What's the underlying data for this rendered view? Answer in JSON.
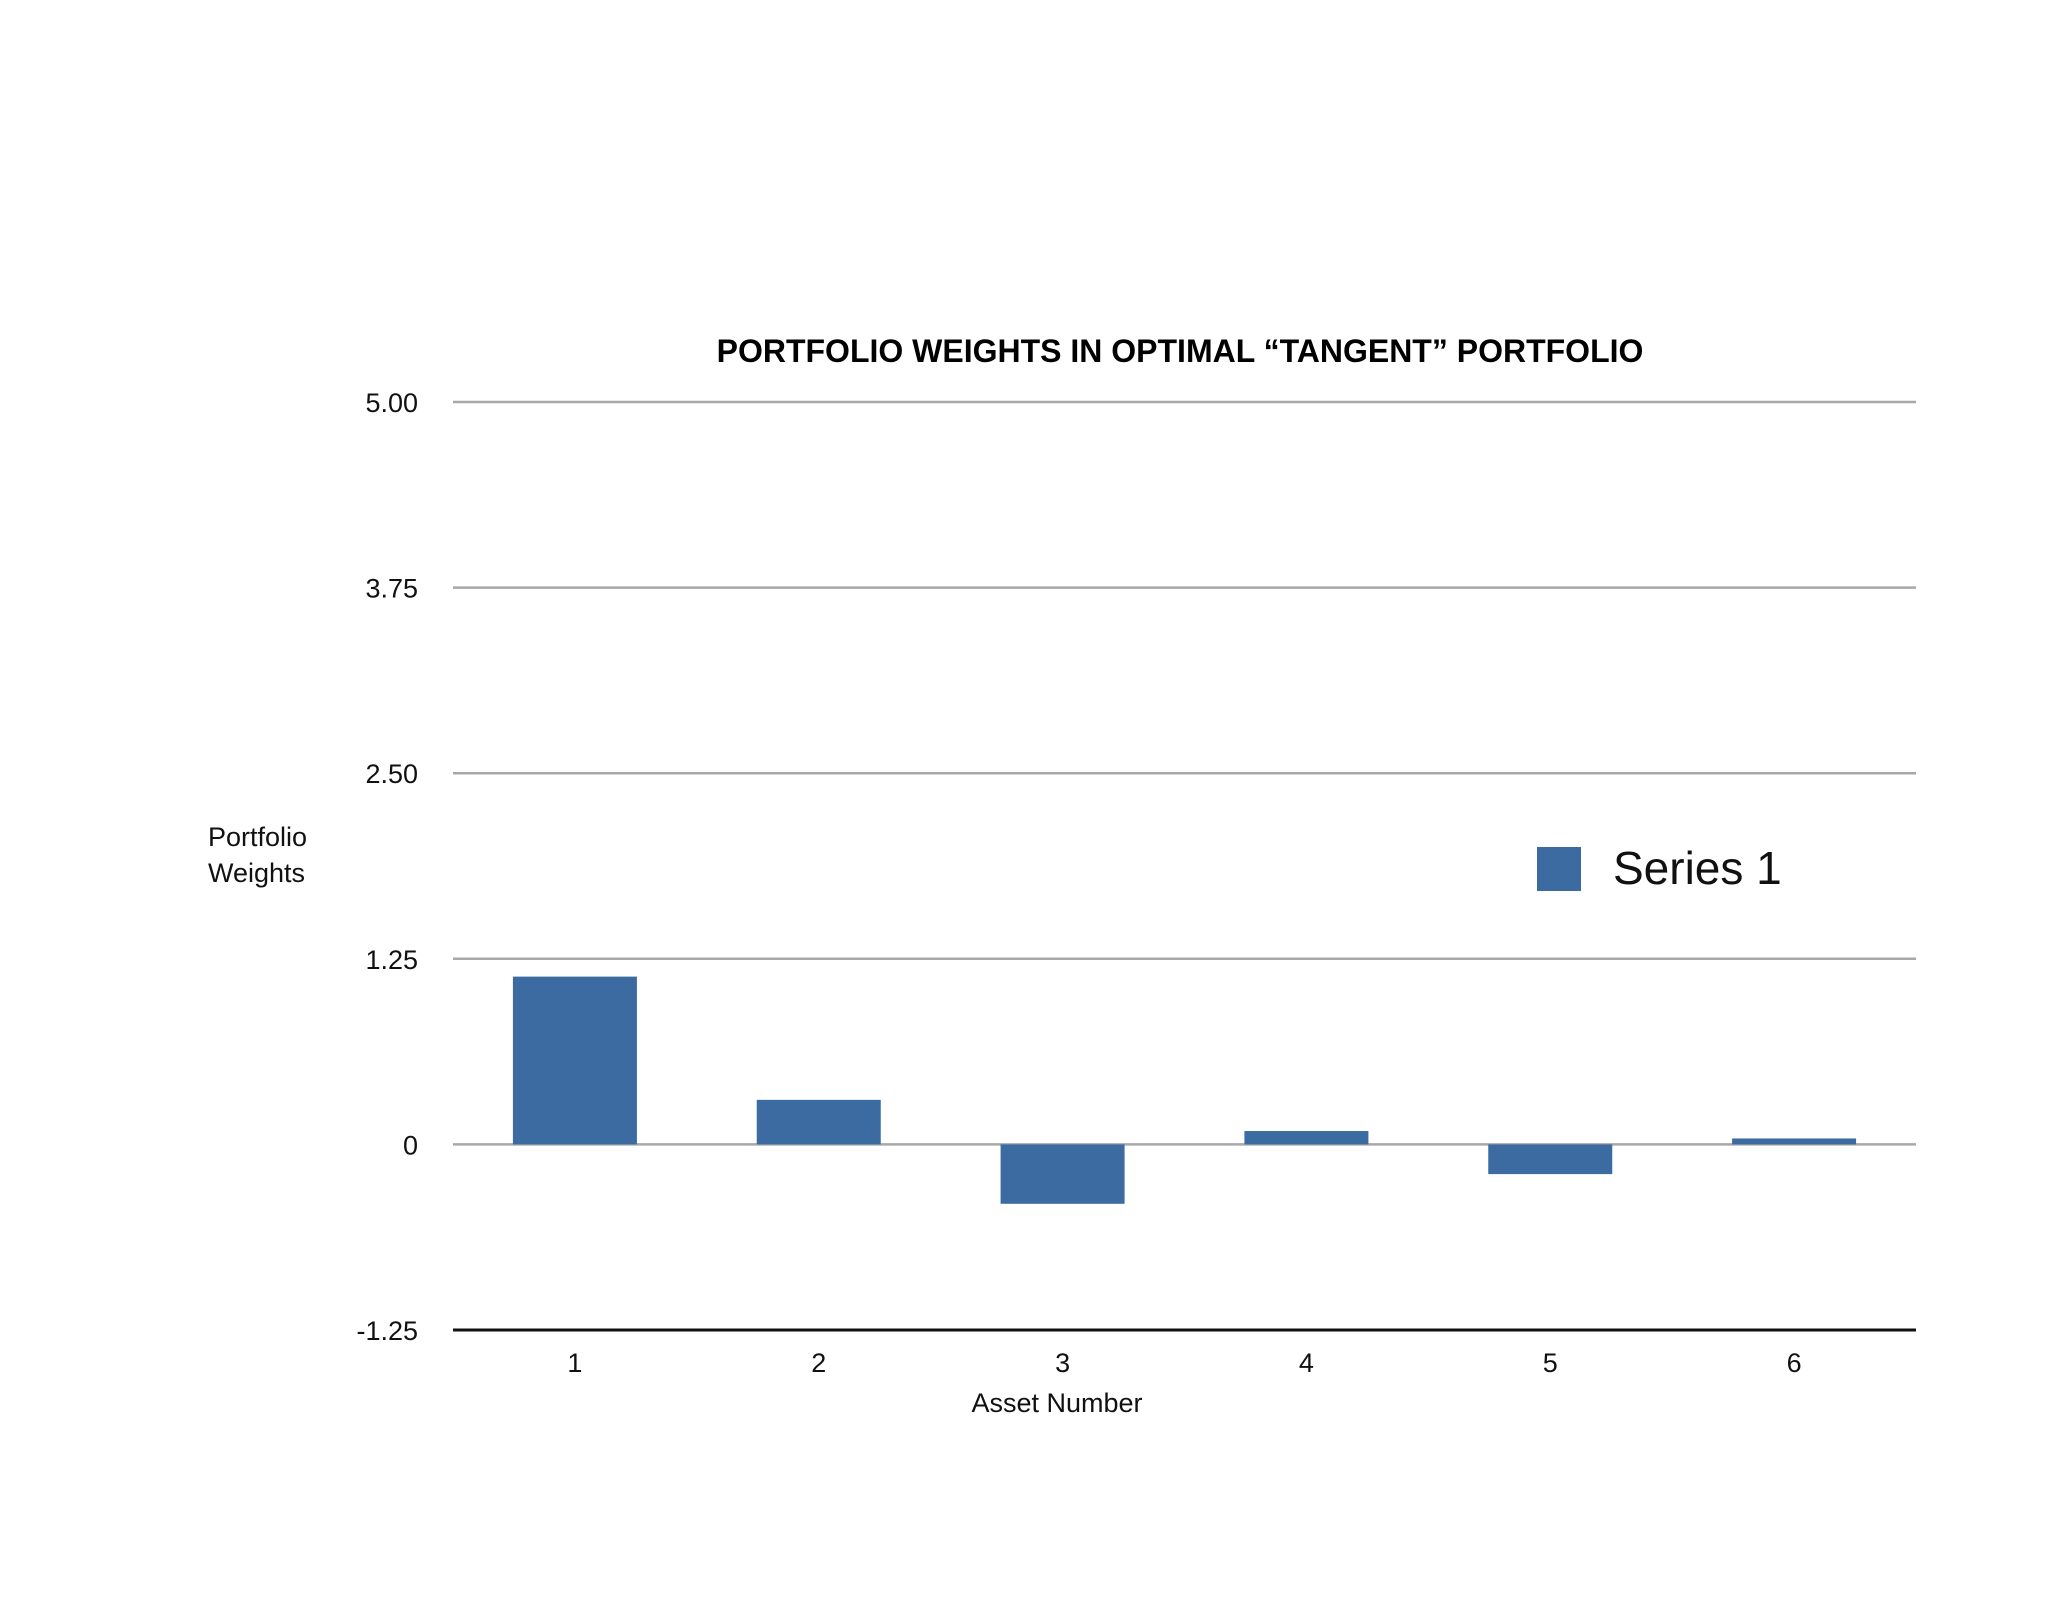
{
  "chart_data": {
    "type": "bar",
    "title": "PORTFOLIO WEIGHTS IN OPTIMAL “TANGENT” PORTFOLIO",
    "xlabel": "Asset Number",
    "ylabel": "Portfolio Weights",
    "categories": [
      "1",
      "2",
      "3",
      "4",
      "5",
      "6"
    ],
    "series": [
      {
        "name": "Series 1",
        "values": [
          1.13,
          0.3,
          -0.4,
          0.09,
          -0.2,
          0.04
        ],
        "color": "#3b6ba0"
      }
    ],
    "ylim": [
      -1.25,
      5.0
    ],
    "yticks": [
      -1.25,
      0,
      1.25,
      2.5,
      3.75,
      5.0
    ],
    "ytick_labels": [
      "-1.25",
      "0",
      "1.25",
      "2.50",
      "3.75",
      "5.00"
    ],
    "grid": true,
    "legend_position": "right"
  }
}
